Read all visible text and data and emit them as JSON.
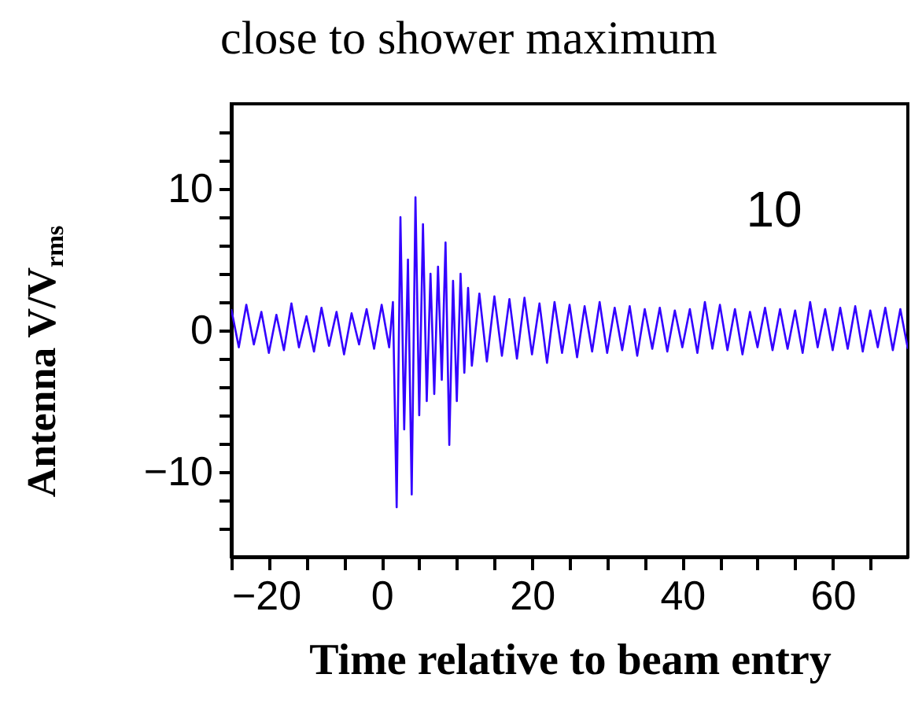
{
  "chart_data": {
    "type": "line",
    "title": "close to shower maximum",
    "xlabel": "Time relative to beam entry",
    "ylabel": "Antenna V/V$_{rms}$",
    "annotations": [
      "10"
    ],
    "series": [
      {
        "color": "#3300ff",
        "x": [
          -20,
          -19,
          -18,
          -17,
          -16,
          -15,
          -14,
          -13,
          -12,
          -11,
          -10,
          -9,
          -8,
          -7,
          -6,
          -5,
          -4,
          -3,
          -2,
          -1,
          0,
          1,
          1.5,
          2,
          2.5,
          3,
          3.5,
          4,
          4.5,
          5,
          5.5,
          6,
          6.5,
          7,
          7.5,
          8,
          8.5,
          9,
          9.5,
          10,
          10.5,
          11,
          11.5,
          12,
          13,
          14,
          15,
          16,
          17,
          18,
          19,
          20,
          21,
          22,
          23,
          24,
          25,
          26,
          27,
          28,
          29,
          30,
          31,
          32,
          33,
          34,
          35,
          36,
          37,
          38,
          39,
          40,
          41,
          42,
          43,
          44,
          45,
          46,
          47,
          48,
          49,
          50,
          51,
          52,
          53,
          54,
          55,
          56,
          57,
          58,
          59,
          60,
          61,
          62,
          63,
          64,
          65,
          66,
          67,
          68,
          69,
          70
        ],
        "values": [
          1.5,
          -1.2,
          1.8,
          -1.0,
          1.3,
          -1.6,
          1.1,
          -1.4,
          1.9,
          -1.2,
          1.0,
          -1.5,
          1.6,
          -1.1,
          1.3,
          -1.7,
          1.2,
          -1.0,
          1.5,
          -1.3,
          1.8,
          -1.2,
          2.0,
          -12.5,
          8.0,
          -7,
          5,
          -11.6,
          9.4,
          -6,
          7.5,
          -5,
          4.0,
          -4.5,
          4.5,
          -3.5,
          6.2,
          -8.1,
          3.5,
          -5.0,
          4.0,
          -3,
          3.0,
          -2.5,
          2.6,
          -2.2,
          2.4,
          -1.8,
          2.2,
          -2.0,
          2.3,
          -1.7,
          1.9,
          -2.3,
          2.0,
          -1.6,
          1.8,
          -1.9,
          1.7,
          -1.5,
          2.0,
          -1.6,
          1.6,
          -1.4,
          1.7,
          -1.8,
          1.5,
          -1.3,
          1.6,
          -1.5,
          1.4,
          -1.2,
          1.5,
          -1.6,
          2.0,
          -1.3,
          1.8,
          -1.4,
          1.5,
          -1.7,
          1.3,
          -1.2,
          1.6,
          -1.4,
          1.5,
          -1.3,
          1.4,
          -1.6,
          2.0,
          -1.2,
          1.5,
          -1.4,
          1.6,
          -1.3,
          1.7,
          -1.5,
          1.4,
          -1.2,
          1.6,
          -1.4,
          1.5,
          -1.3
        ]
      }
    ],
    "xlim": [
      -20,
      70
    ],
    "ylim": [
      -16,
      16
    ],
    "xticks": [
      -20,
      {
        "value": -15,
        "label": null
      },
      {
        "value": -10,
        "label": null
      },
      {
        "value": -5,
        "label": null
      },
      0,
      {
        "value": 5,
        "label": null
      },
      {
        "value": 10,
        "label": null
      },
      {
        "value": 15,
        "label": null
      },
      20,
      {
        "value": 25,
        "label": null
      },
      {
        "value": 30,
        "label": null
      },
      {
        "value": 35,
        "label": null
      },
      40,
      {
        "value": 45,
        "label": null
      },
      {
        "value": 50,
        "label": null
      },
      {
        "value": 55,
        "label": null
      },
      60,
      {
        "value": 65,
        "label": null
      }
    ],
    "yticks": [
      {
        "value": -14,
        "label": null
      },
      {
        "value": -12,
        "label": null
      },
      -10,
      {
        "value": -8,
        "label": null
      },
      {
        "value": -6,
        "label": null
      },
      {
        "value": -4,
        "label": null
      },
      {
        "value": -2,
        "label": null
      },
      0,
      {
        "value": 2,
        "label": null
      },
      {
        "value": 4,
        "label": null
      },
      {
        "value": 6,
        "label": null
      },
      {
        "value": 8,
        "label": null
      },
      10,
      {
        "value": 12,
        "label": null
      },
      {
        "value": 14,
        "label": null
      }
    ],
    "grid": false,
    "marker": "none",
    "line_style": "solid"
  }
}
